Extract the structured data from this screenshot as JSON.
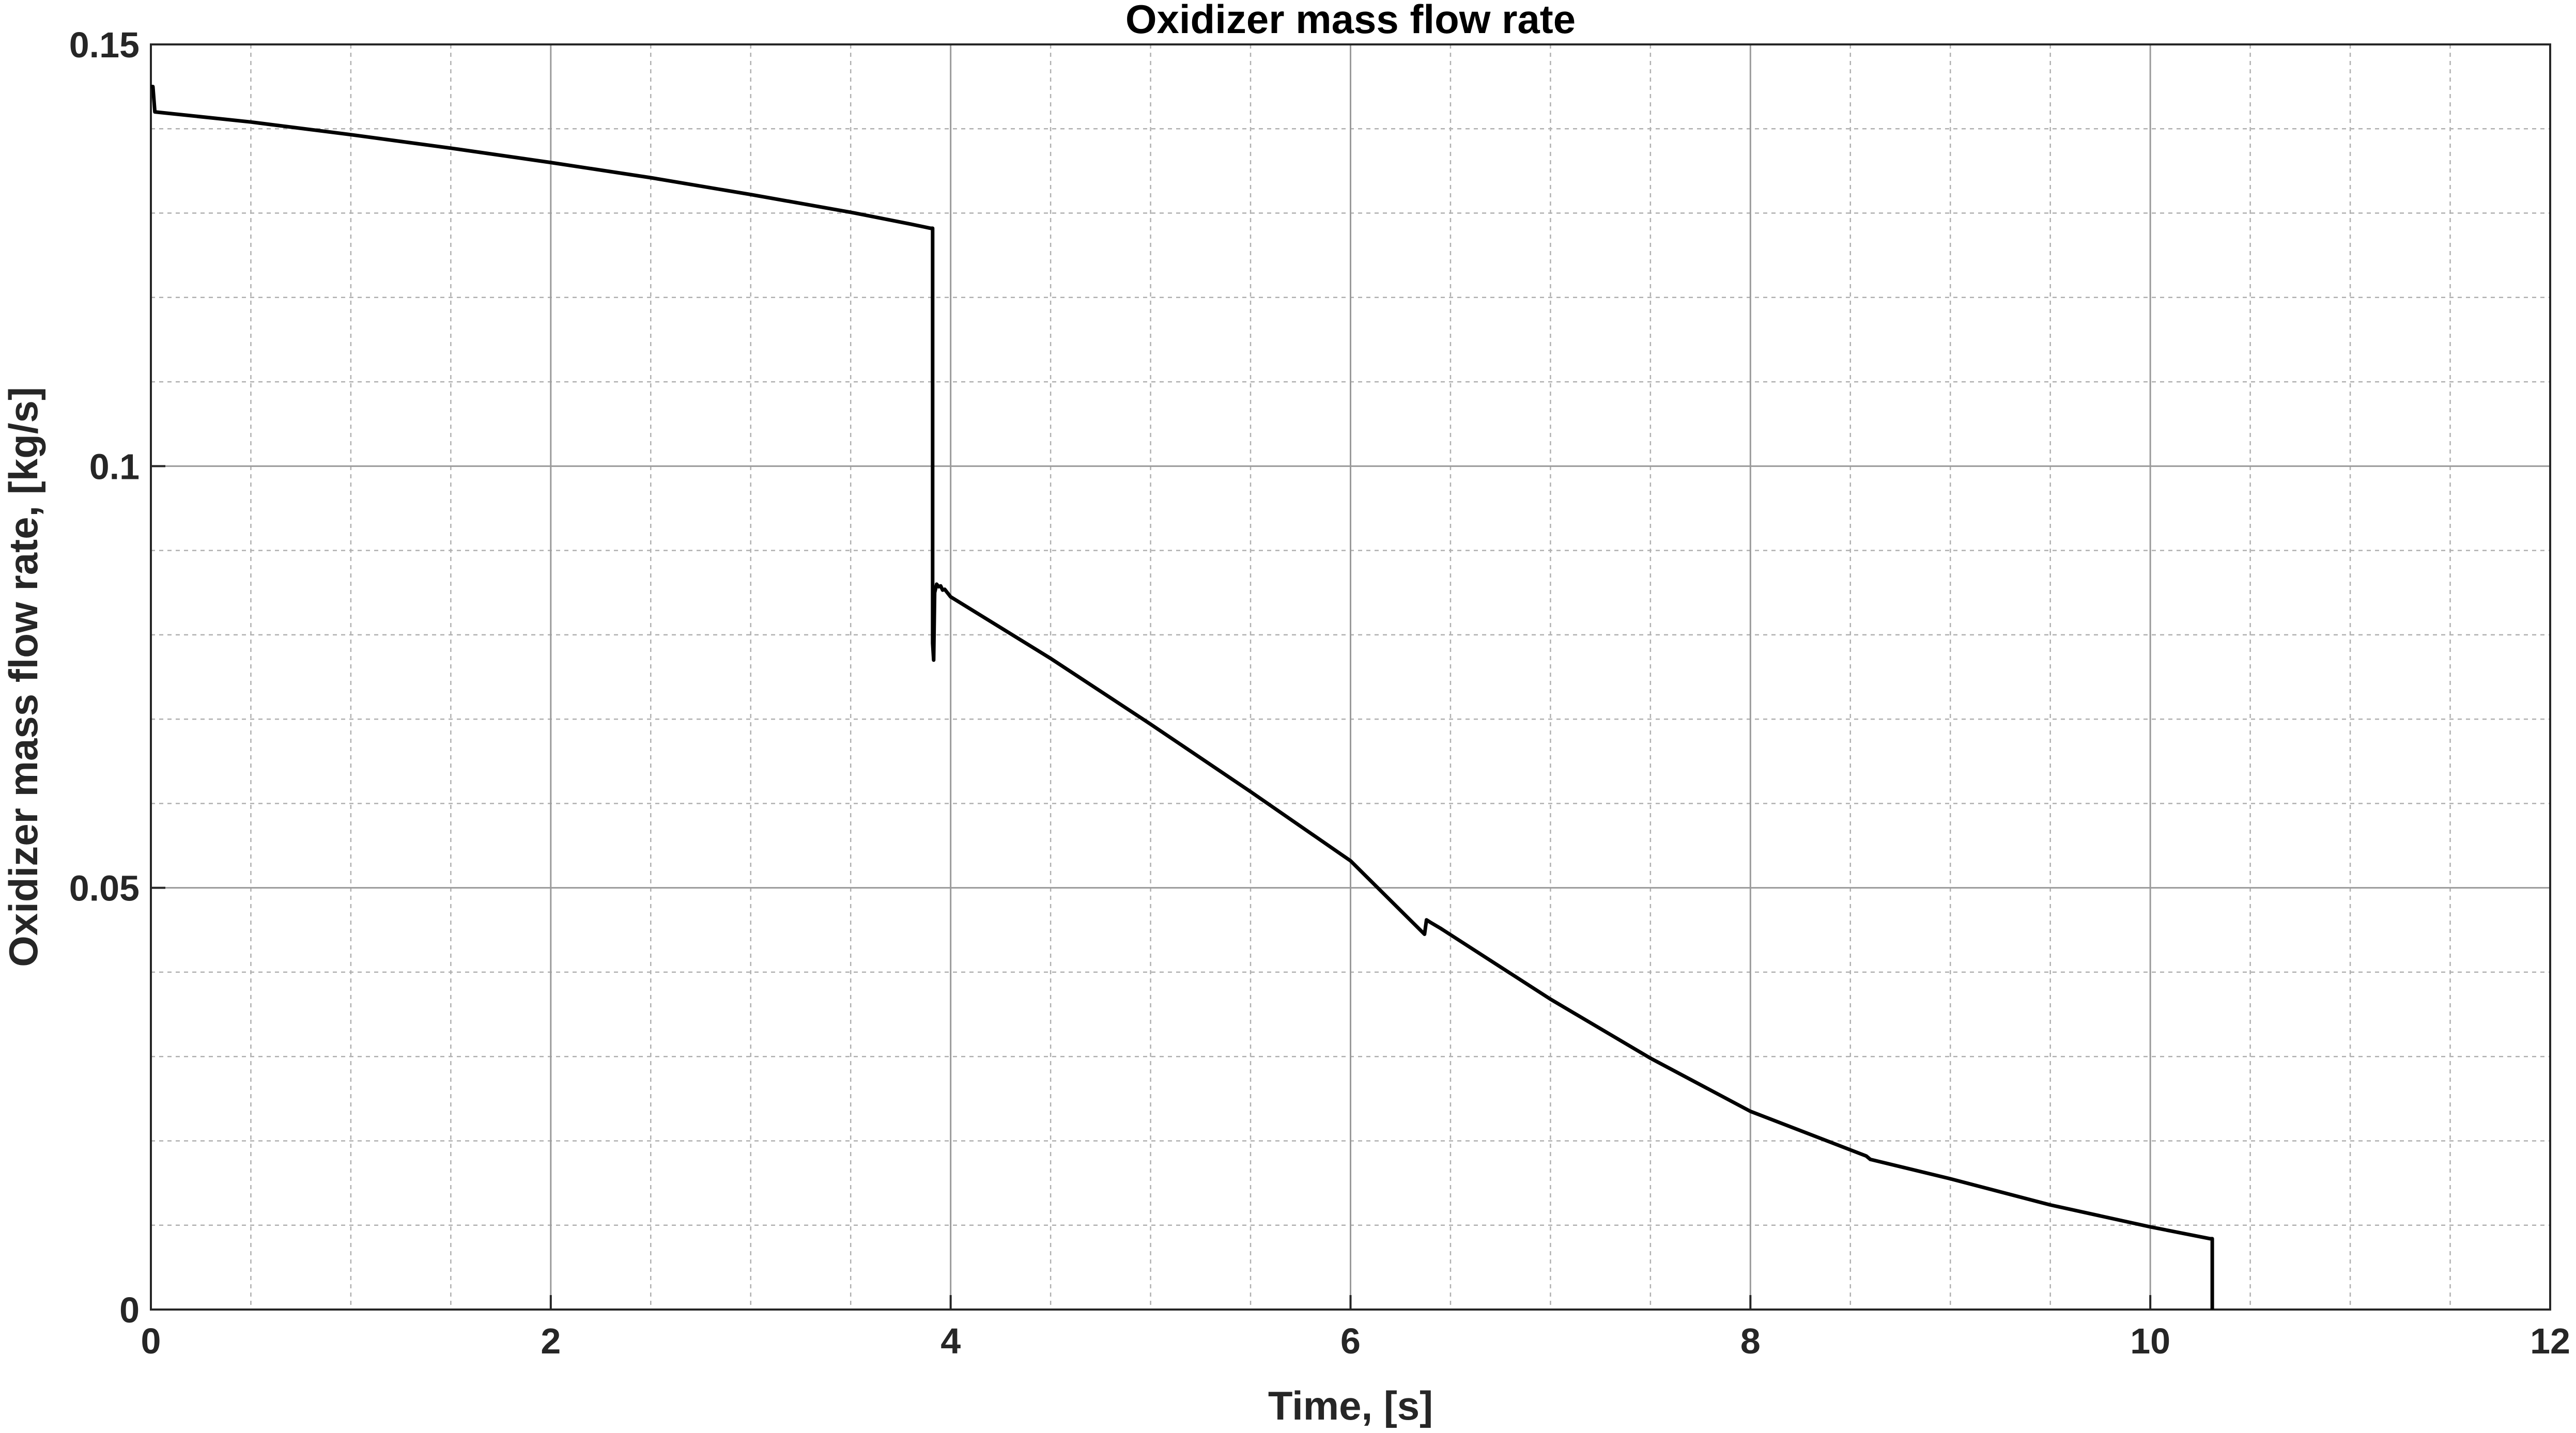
{
  "chart_data": {
    "type": "line",
    "title": "Oxidizer mass flow rate",
    "xlabel": "Time, [s]",
    "ylabel": "Oxidizer mass flow rate, [kg/s]",
    "xlim": [
      0,
      12
    ],
    "ylim": [
      0,
      0.15
    ],
    "x_ticks": [
      0,
      2,
      4,
      6,
      8,
      10,
      12
    ],
    "x_tick_labels": [
      "0",
      "2",
      "4",
      "6",
      "8",
      "10",
      "12"
    ],
    "y_ticks": [
      0,
      0.05,
      0.1,
      0.15
    ],
    "y_tick_labels": [
      "0",
      "0.05",
      "0.1",
      "0.15"
    ],
    "x_minor_step": 0.5,
    "y_minor_step": 0.01,
    "grid": true,
    "minor_grid": true,
    "line_color": "#000000",
    "series": [
      {
        "x": [
          0.0,
          0.01,
          0.02,
          0.5,
          1.0,
          1.5,
          2.0,
          2.5,
          3.0,
          3.5,
          3.8,
          3.9,
          3.905,
          3.91,
          3.91,
          3.915,
          3.92,
          3.93,
          3.94,
          3.95,
          3.96,
          3.97,
          4.0,
          4.5,
          5.0,
          5.5,
          6.0,
          6.37,
          6.38,
          6.4,
          6.45,
          7.0,
          7.5,
          8.0,
          8.58,
          8.6,
          9.0,
          9.5,
          10.0,
          10.3,
          10.31,
          10.31
        ],
        "y": [
          0.145,
          0.145,
          0.142,
          0.1408,
          0.1393,
          0.1377,
          0.136,
          0.1342,
          0.1322,
          0.1301,
          0.1287,
          0.1282,
          0.1282,
          0.1282,
          0.079,
          0.077,
          0.085,
          0.086,
          0.0857,
          0.0858,
          0.0853,
          0.0854,
          0.0845,
          0.0772,
          0.0694,
          0.0614,
          0.0532,
          0.0445,
          0.0462,
          0.0459,
          0.0452,
          0.0368,
          0.0298,
          0.0235,
          0.0182,
          0.0178,
          0.0155,
          0.0124,
          0.0098,
          0.0084,
          0.0084,
          0.0
        ]
      }
    ]
  }
}
